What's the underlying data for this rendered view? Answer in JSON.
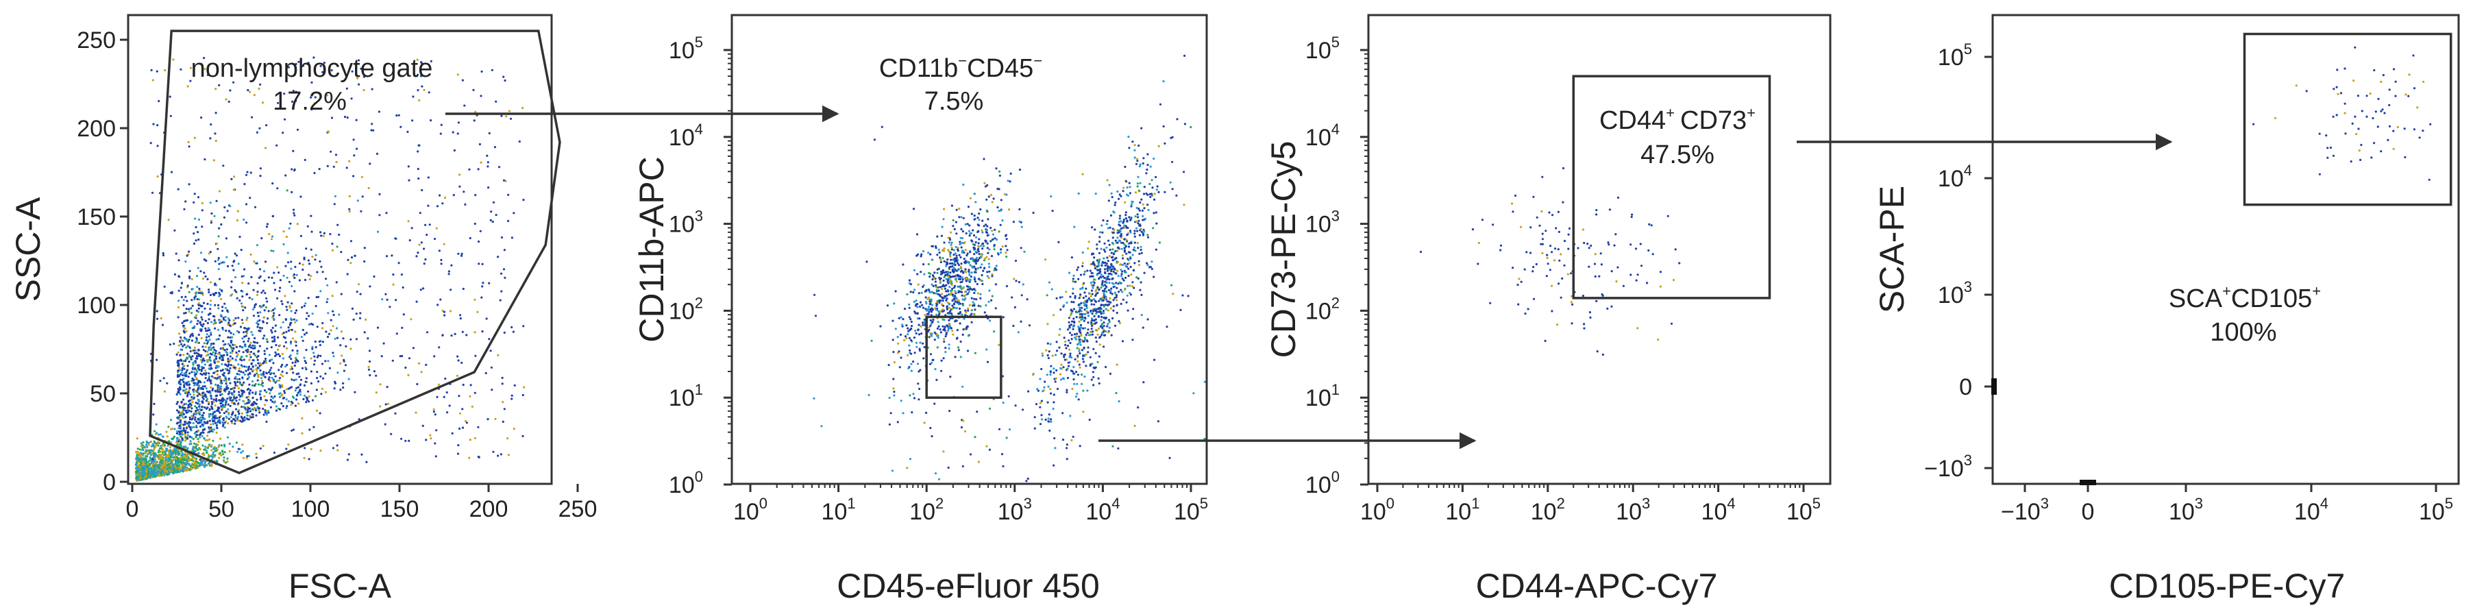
{
  "chart_data": [
    {
      "type": "scatter",
      "xlabel": "FSC-A",
      "ylabel": "SSC-A",
      "xlim": [
        0,
        260
      ],
      "ylim": [
        0,
        260
      ],
      "xticks": [
        "0",
        "50",
        "100",
        "150",
        "200",
        "250"
      ],
      "yticks": [
        "0",
        "50",
        "100",
        "150",
        "200",
        "250"
      ],
      "gate": {
        "label": "non-lymphocyte gate",
        "value": "17.2%",
        "polygon": [
          [
            22,
            255
          ],
          [
            228,
            255
          ],
          [
            240,
            192
          ],
          [
            232,
            134
          ],
          [
            192,
            62
          ],
          [
            60,
            5
          ],
          [
            10,
            26
          ],
          [
            12,
            88
          ]
        ]
      }
    },
    {
      "type": "scatter",
      "xlabel": "CD45-eFluor 450",
      "ylabel": "CD11b-APC",
      "xscale": "log",
      "yscale": "log",
      "xticks": [
        {
          "base": "10",
          "exp": "0"
        },
        {
          "base": "10",
          "exp": "1"
        },
        {
          "base": "10",
          "exp": "2"
        },
        {
          "base": "10",
          "exp": "3"
        },
        {
          "base": "10",
          "exp": "4"
        },
        {
          "base": "10",
          "exp": "5"
        }
      ],
      "yticks": [
        {
          "base": "10",
          "exp": "0"
        },
        {
          "base": "10",
          "exp": "1"
        },
        {
          "base": "10",
          "exp": "2"
        },
        {
          "base": "10",
          "exp": "3"
        },
        {
          "base": "10",
          "exp": "4"
        },
        {
          "base": "10",
          "exp": "5"
        }
      ],
      "gate": {
        "label_a": "CD11b",
        "sup_a": "−",
        "label_b": "CD45",
        "sup_b": "−",
        "value": "7.5%",
        "x": [
          100,
          700
        ],
        "y": [
          10,
          85
        ]
      }
    },
    {
      "type": "scatter",
      "xlabel": "CD44-APC-Cy7",
      "ylabel": "CD73-PE-Cy5",
      "xscale": "log",
      "yscale": "log",
      "xticks": [
        {
          "base": "10",
          "exp": "0"
        },
        {
          "base": "10",
          "exp": "1"
        },
        {
          "base": "10",
          "exp": "2"
        },
        {
          "base": "10",
          "exp": "3"
        },
        {
          "base": "10",
          "exp": "4"
        },
        {
          "base": "10",
          "exp": "5"
        }
      ],
      "yticks": [
        {
          "base": "10",
          "exp": "0"
        },
        {
          "base": "10",
          "exp": "1"
        },
        {
          "base": "10",
          "exp": "2"
        },
        {
          "base": "10",
          "exp": "3"
        },
        {
          "base": "10",
          "exp": "4"
        },
        {
          "base": "10",
          "exp": "5"
        }
      ],
      "gate": {
        "label_a": "CD44",
        "sup_a": "+",
        "label_b": "CD73",
        "sup_b": "+",
        "value": "47.5%",
        "x": [
          200,
          40000
        ],
        "y": [
          140,
          50000
        ]
      }
    },
    {
      "type": "scatter",
      "xlabel": "CD105-PE-Cy7",
      "ylabel": "SCA-PE",
      "xscale": "biexponential",
      "yscale": "biexponential",
      "xticks": [
        {
          "base": "−10",
          "exp": "3"
        },
        {
          "base": "0",
          "exp": ""
        },
        {
          "base": "10",
          "exp": "3"
        },
        {
          "base": "10",
          "exp": "4"
        },
        {
          "base": "10",
          "exp": "5"
        }
      ],
      "yticks": [
        {
          "base": "−10",
          "exp": "3"
        },
        {
          "base": "0",
          "exp": ""
        },
        {
          "base": "10",
          "exp": "3"
        },
        {
          "base": "10",
          "exp": "4"
        },
        {
          "base": "10",
          "exp": "5"
        }
      ],
      "gate": {
        "label_a": "SCA",
        "sup_a": "+",
        "label_b": "CD105",
        "sup_b": "+",
        "value": "100%",
        "x": [
          3000,
          170000
        ],
        "y": [
          6000,
          200000
        ]
      }
    }
  ]
}
